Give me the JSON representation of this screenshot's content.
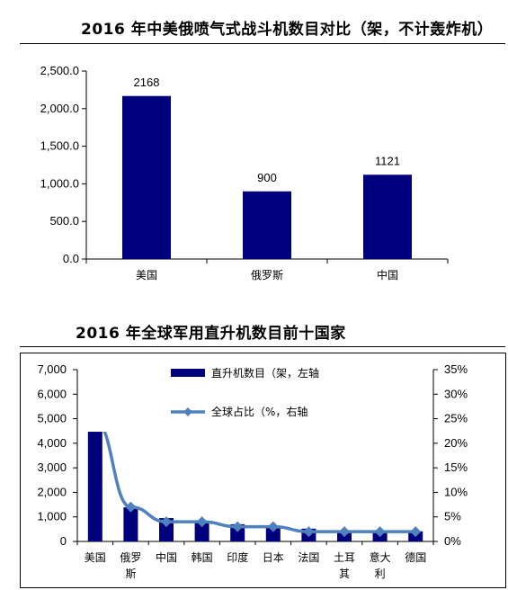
{
  "chart_data": [
    {
      "type": "bar",
      "title": "2016 年中美俄喷气式战斗机数目对比（架，不计轰炸机）",
      "categories": [
        "美国",
        "俄罗斯",
        "中国"
      ],
      "values": [
        2168,
        900,
        1121
      ],
      "data_labels": [
        "2168",
        "900",
        "1121"
      ],
      "ylim": [
        0,
        2500
      ],
      "yticks": [
        "0.0",
        "500.0",
        "1,000.0",
        "1,500.0",
        "2,000.0",
        "2,500.0"
      ],
      "bar_color": "#00007f",
      "grid": false
    },
    {
      "type": "bar+line",
      "title": "2016 年全球军用直升机数目前十国家",
      "categories": [
        [
          "美国"
        ],
        [
          "俄罗",
          "斯"
        ],
        [
          "中国"
        ],
        [
          "韩国"
        ],
        [
          "印度"
        ],
        [
          "日本"
        ],
        [
          "法国"
        ],
        [
          "土耳",
          "其"
        ],
        [
          "意大",
          "利"
        ],
        [
          "德国"
        ]
      ],
      "series": [
        {
          "name": "直升机数目（架，左轴",
          "type": "bar",
          "axis": "left",
          "values": [
            4470,
            1390,
            950,
            800,
            700,
            640,
            520,
            420,
            420,
            410
          ],
          "color": "#00007f"
        },
        {
          "name": "全球占比（%，右轴",
          "type": "line",
          "axis": "right",
          "values": [
            24.5,
            7.0,
            4.0,
            4.0,
            3.0,
            3.0,
            2.0,
            2.0,
            2.0,
            2.0
          ],
          "color": "#4f81bd"
        }
      ],
      "ylim_left": [
        0,
        7000
      ],
      "ylim_right": [
        0,
        35
      ],
      "yticks_left": [
        "0",
        "1,000",
        "2,000",
        "3,000",
        "4,000",
        "5,000",
        "6,000",
        "7,000"
      ],
      "yticks_right": [
        "0%",
        "5%",
        "10%",
        "15%",
        "20%",
        "25%",
        "30%",
        "35%"
      ],
      "legend_position": "top-center",
      "grid": false
    }
  ]
}
